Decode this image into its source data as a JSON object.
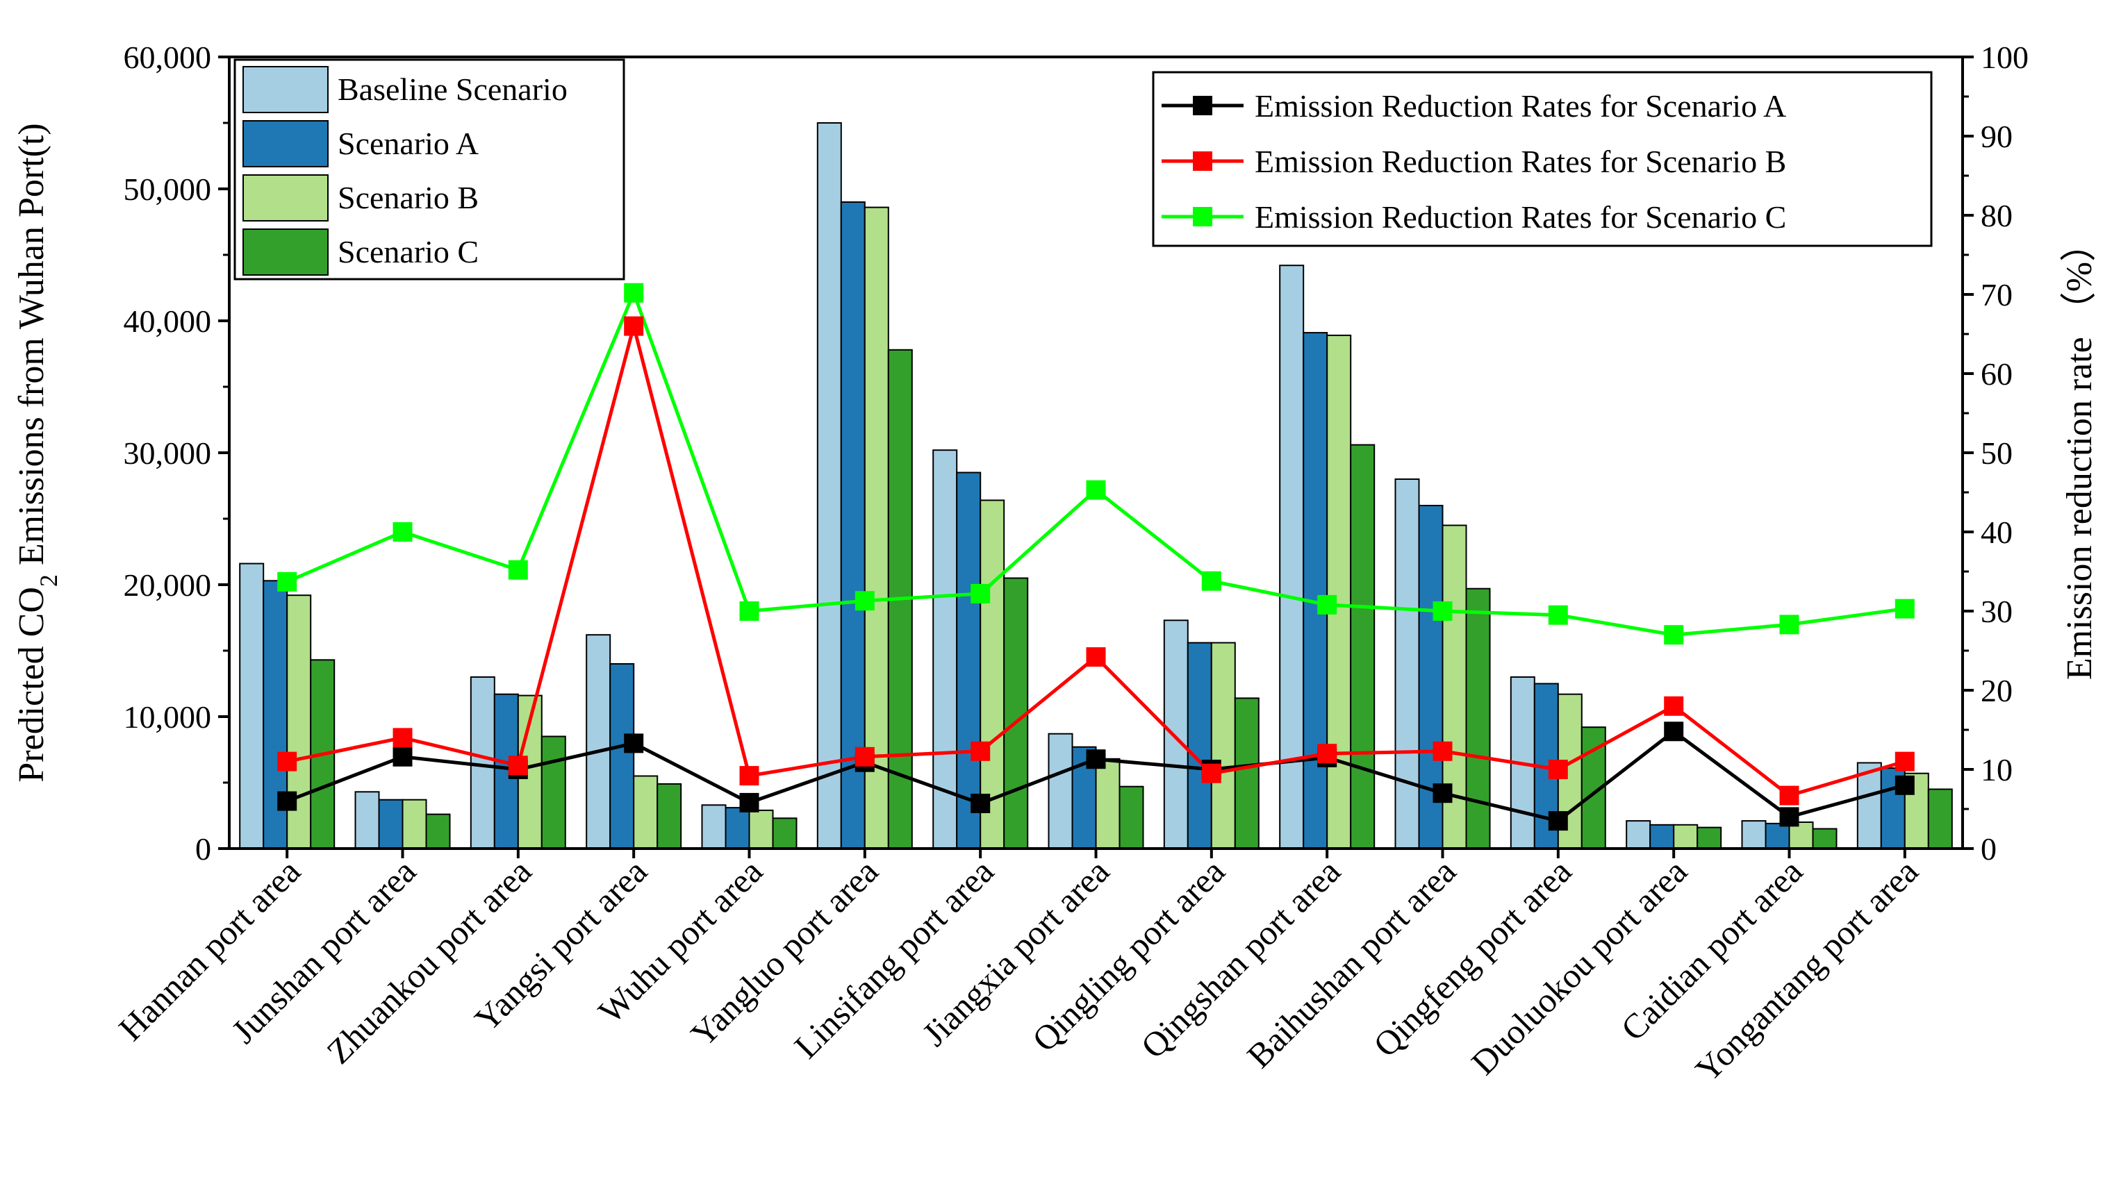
{
  "chart_data": {
    "type": "bar",
    "categories": [
      "Hannan port area",
      "Junshan port area",
      "Zhuankou port area",
      "Yangsi port area",
      "Wuhu port area",
      "Yangluo port area",
      "Linsifang port area",
      "Jiangxia port area",
      "Qingling port area",
      "Qingshan port area",
      "Baihushan port area",
      "Qingfeng port area",
      "Duoluokou port area",
      "Caidian port area",
      "Yongantang port area"
    ],
    "ylabel_prefix": "Predicted CO",
    "ylabel_sub": "2",
    "ylabel_suffix": " Emissions from Wuhan Port(t)",
    "y2label": "Emission reduction rate （%）",
    "ylim": [
      0,
      60000
    ],
    "y2lim": [
      0,
      100
    ],
    "yticks": [
      "0",
      "10,000",
      "20,000",
      "30,000",
      "40,000",
      "50,000",
      "60,000"
    ],
    "y2ticks": [
      "0",
      "10",
      "20",
      "30",
      "40",
      "50",
      "60",
      "70",
      "80",
      "90",
      "100"
    ],
    "series": [
      {
        "name": "Baseline Scenario",
        "axis": "left",
        "kind": "bar",
        "color": "#a6cee3",
        "values": [
          21600,
          4300,
          13000,
          16200,
          3300,
          55000,
          30200,
          8700,
          17300,
          44200,
          28000,
          13000,
          2100,
          2100,
          6500
        ]
      },
      {
        "name": "Scenario A",
        "axis": "left",
        "kind": "bar",
        "color": "#1f78b4",
        "values": [
          20300,
          3700,
          11700,
          14000,
          3100,
          49000,
          28500,
          7700,
          15600,
          39100,
          26000,
          12500,
          1800,
          1900,
          6100
        ]
      },
      {
        "name": "Scenario B",
        "axis": "left",
        "kind": "bar",
        "color": "#b2df8a",
        "values": [
          19200,
          3700,
          11600,
          5500,
          2900,
          48600,
          26400,
          6800,
          15600,
          38900,
          24500,
          11700,
          1800,
          2000,
          5700
        ]
      },
      {
        "name": "Scenario C",
        "axis": "left",
        "kind": "bar",
        "color": "#33a02c",
        "values": [
          14300,
          2600,
          8500,
          4900,
          2300,
          37800,
          20500,
          4700,
          11400,
          30600,
          19700,
          9200,
          1600,
          1500,
          4500
        ]
      },
      {
        "name": "Emission Reduction Rates for Scenario A",
        "axis": "right",
        "kind": "line",
        "color": "#000000",
        "values": [
          6,
          11.6,
          10,
          13.3,
          5.8,
          10.9,
          5.7,
          11.3,
          10,
          11.5,
          7,
          3.5,
          14.8,
          4,
          8
        ]
      },
      {
        "name": "Emission Reduction Rates for Scenario B",
        "axis": "right",
        "kind": "line",
        "color": "#ff0000",
        "values": [
          11,
          14,
          10.5,
          66,
          9.2,
          11.6,
          12.3,
          24.2,
          9.5,
          12,
          12.3,
          10,
          18,
          6.7,
          11
        ]
      },
      {
        "name": "Emission Reduction Rates for Scenario C",
        "axis": "right",
        "kind": "line",
        "color": "#00ff00",
        "values": [
          33.7,
          40,
          35.2,
          70.2,
          30,
          31.3,
          32.2,
          45.3,
          33.8,
          30.8,
          30,
          29.5,
          27,
          28.3,
          30.3
        ]
      }
    ],
    "legend_bars_position": "top-left",
    "legend_lines_position": "top-right",
    "grid": false
  }
}
